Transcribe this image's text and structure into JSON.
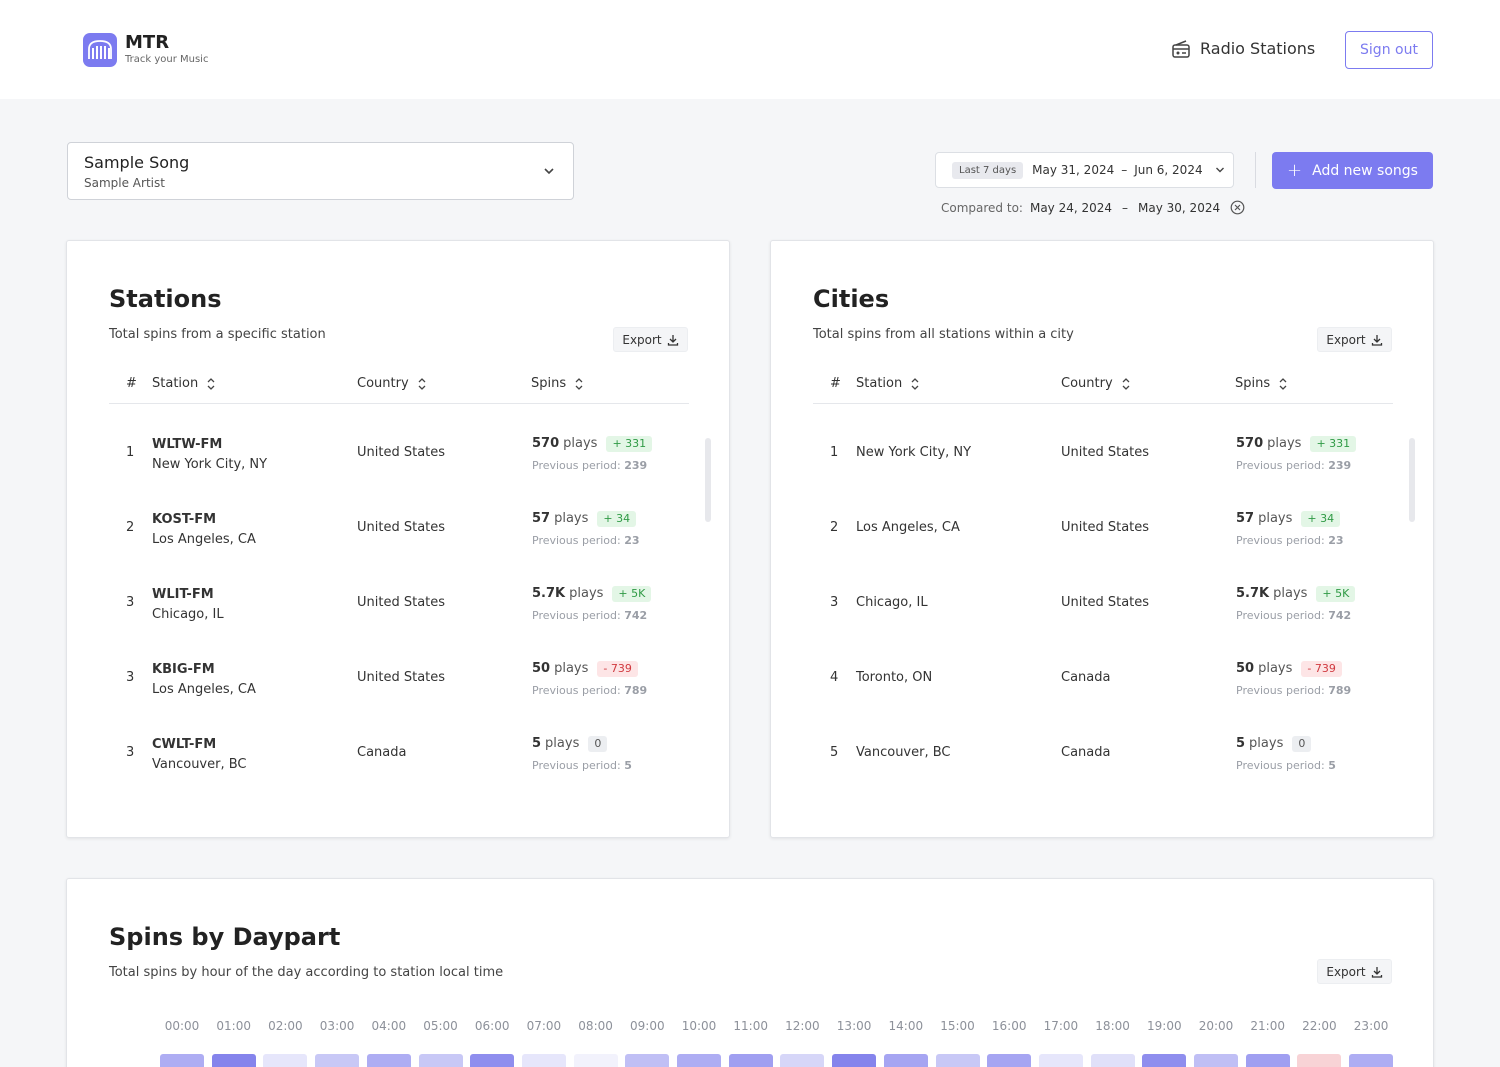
{
  "brand": {
    "name": "MTR",
    "tagline": "Track your Music",
    "accent": "#7c7bf0"
  },
  "nav": {
    "radio_label": "Radio Stations",
    "signout_label": "Sign out"
  },
  "song": {
    "title": "Sample Song",
    "artist": "Sample Artist"
  },
  "date_range": {
    "badge": "Last 7 days",
    "start": "May 31, 2024",
    "end": "Jun 6, 2024",
    "dash": "–",
    "compare_label": "Compared to:",
    "compare_start": "May 24, 2024",
    "compare_end": "May 30, 2024"
  },
  "add_button": "Add new songs",
  "stations": {
    "title": "Stations",
    "subtitle": "Total spins from a specific station",
    "export_label": "Export",
    "columns": [
      "#",
      "Station",
      "Country",
      "Spins"
    ],
    "rows": [
      {
        "rank": "1",
        "name": "WLTW-FM",
        "city": "New York City, NY",
        "country": "United States",
        "plays": "570",
        "plays_word": "plays",
        "delta": "+ 331",
        "delta_type": "pos",
        "prev_label": "Previous period:",
        "prev": "239"
      },
      {
        "rank": "2",
        "name": "KOST-FM",
        "city": "Los Angeles, CA",
        "country": "United States",
        "plays": "57",
        "plays_word": "plays",
        "delta": "+ 34",
        "delta_type": "pos",
        "prev_label": "Previous period:",
        "prev": "23"
      },
      {
        "rank": "3",
        "name": "WLIT-FM",
        "city": "Chicago, IL",
        "country": "United States",
        "plays": "5.7K",
        "plays_word": "plays",
        "delta": "+ 5K",
        "delta_type": "pos",
        "prev_label": "Previous period:",
        "prev": "742"
      },
      {
        "rank": "3",
        "name": "KBIG-FM",
        "city": "Los Angeles, CA",
        "country": "United States",
        "plays": "50",
        "plays_word": "plays",
        "delta": "- 739",
        "delta_type": "neg",
        "prev_label": "Previous period:",
        "prev": "789"
      },
      {
        "rank": "3",
        "name": "CWLT-FM",
        "city": "Vancouver, BC",
        "country": "Canada",
        "plays": "5",
        "plays_word": "plays",
        "delta": "0",
        "delta_type": "zero",
        "prev_label": "Previous period:",
        "prev": "5"
      }
    ]
  },
  "cities": {
    "title": "Cities",
    "subtitle": "Total spins from all stations within a city",
    "export_label": "Export",
    "columns": [
      "#",
      "Station",
      "Country",
      "Spins"
    ],
    "rows": [
      {
        "rank": "1",
        "city": "New York City, NY",
        "country": "United States",
        "plays": "570",
        "plays_word": "plays",
        "delta": "+ 331",
        "delta_type": "pos",
        "prev_label": "Previous period:",
        "prev": "239"
      },
      {
        "rank": "2",
        "city": "Los Angeles, CA",
        "country": "United States",
        "plays": "57",
        "plays_word": "plays",
        "delta": "+ 34",
        "delta_type": "pos",
        "prev_label": "Previous period:",
        "prev": "23"
      },
      {
        "rank": "3",
        "city": "Chicago, IL",
        "country": "United States",
        "plays": "5.7K",
        "plays_word": "plays",
        "delta": "+ 5K",
        "delta_type": "pos",
        "prev_label": "Previous period:",
        "prev": "742"
      },
      {
        "rank": "4",
        "city": "Toronto, ON",
        "country": "Canada",
        "plays": "50",
        "plays_word": "plays",
        "delta": "- 739",
        "delta_type": "neg",
        "prev_label": "Previous period:",
        "prev": "789"
      },
      {
        "rank": "5",
        "city": "Vancouver, BC",
        "country": "Canada",
        "plays": "5",
        "plays_word": "plays",
        "delta": "0",
        "delta_type": "zero",
        "prev_label": "Previous period:",
        "prev": "5"
      }
    ]
  },
  "daypart": {
    "title": "Spins by Daypart",
    "subtitle": "Total spins by hour of the day according to station local time",
    "export_label": "Export",
    "hours": [
      "00:00",
      "01:00",
      "02:00",
      "03:00",
      "04:00",
      "05:00",
      "06:00",
      "07:00",
      "08:00",
      "09:00",
      "10:00",
      "11:00",
      "12:00",
      "13:00",
      "14:00",
      "15:00",
      "16:00",
      "17:00",
      "18:00",
      "19:00",
      "20:00",
      "21:00",
      "22:00",
      "23:00"
    ],
    "cell_colors": [
      "#aeadf3",
      "#8584ec",
      "#e6e6fb",
      "#c8c8f6",
      "#aeadf3",
      "#c8c8f6",
      "#8f8eee",
      "#e6e6fb",
      "#f2f2fc",
      "#c0bff5",
      "#aeadf3",
      "#a09ff1",
      "#d6d6f8",
      "#8584ec",
      "#a6a5f2",
      "#c8c8f6",
      "#a6a5f2",
      "#e6e6fb",
      "#e0e0f9",
      "#8f8eee",
      "#c0bff5",
      "#a09ff1",
      "#f8d3d6",
      "#aeadf3"
    ]
  }
}
